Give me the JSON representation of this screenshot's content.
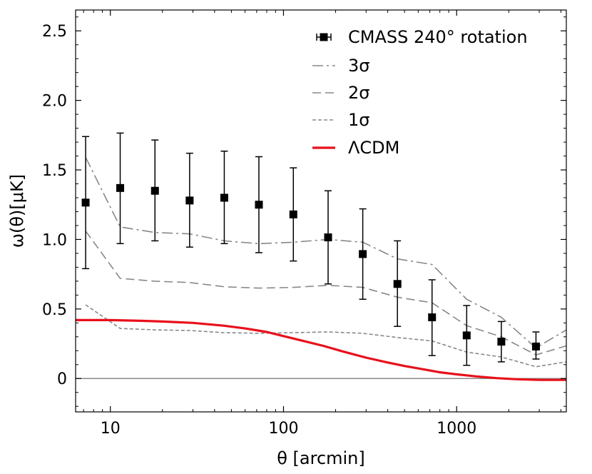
{
  "chart_data": {
    "type": "scatter",
    "xscale": "log",
    "xlim": [
      6.3,
      4300
    ],
    "ylim": [
      -0.24,
      2.65
    ],
    "xlabel": "θ [arcmin]",
    "ylabel": "ω(θ)[μK]",
    "xticks": [
      {
        "value": 10,
        "label": "10"
      },
      {
        "value": 100,
        "label": "100"
      },
      {
        "value": 1000,
        "label": "1000"
      }
    ],
    "yticks": [
      {
        "value": 0,
        "label": "0"
      },
      {
        "value": 0.5,
        "label": "0.5"
      },
      {
        "value": 1.0,
        "label": "1.0"
      },
      {
        "value": 1.5,
        "label": "1.5"
      },
      {
        "value": 2.0,
        "label": "2.0"
      },
      {
        "value": 2.5,
        "label": "2.5"
      }
    ],
    "legend_position": "top-right",
    "zero_line": true,
    "points": {
      "name": "CMASS 240° rotation",
      "color": "#000000",
      "x": [
        7.2,
        11.4,
        18.1,
        28.7,
        45.5,
        72.1,
        114,
        181,
        287,
        455,
        721,
        1143,
        1812,
        2872
      ],
      "y": [
        1.265,
        1.37,
        1.35,
        1.28,
        1.3,
        1.25,
        1.18,
        1.015,
        0.895,
        0.68,
        0.44,
        0.31,
        0.265,
        0.23
      ],
      "yerr_low": [
        0.79,
        0.97,
        0.99,
        0.945,
        0.97,
        0.905,
        0.845,
        0.68,
        0.57,
        0.375,
        0.165,
        0.095,
        0.12,
        0.14
      ],
      "yerr_high": [
        1.74,
        1.765,
        1.715,
        1.62,
        1.635,
        1.595,
        1.515,
        1.35,
        1.22,
        0.99,
        0.71,
        0.525,
        0.41,
        0.335
      ]
    },
    "series": [
      {
        "name": "3σ",
        "color": "#888888",
        "dash": "dashdot",
        "x": [
          7.2,
          11.4,
          18.1,
          28.7,
          45.5,
          72.1,
          114,
          181,
          287,
          455,
          721,
          1143,
          1812,
          2872,
          4300
        ],
        "y": [
          1.59,
          1.09,
          1.05,
          1.04,
          0.99,
          0.97,
          0.98,
          1.0,
          0.98,
          0.86,
          0.82,
          0.57,
          0.44,
          0.22,
          0.35
        ]
      },
      {
        "name": "2σ",
        "color": "#888888",
        "dash": "dashed",
        "x": [
          7.2,
          11.4,
          18.1,
          28.7,
          45.5,
          72.1,
          114,
          181,
          287,
          455,
          721,
          1143,
          1812,
          2872,
          4300
        ],
        "y": [
          1.06,
          0.72,
          0.7,
          0.69,
          0.66,
          0.65,
          0.655,
          0.67,
          0.655,
          0.585,
          0.545,
          0.38,
          0.3,
          0.17,
          0.235
        ]
      },
      {
        "name": "1σ",
        "color": "#888888",
        "dash": "dotted",
        "x": [
          7.2,
          11.4,
          18.1,
          28.7,
          45.5,
          72.1,
          114,
          181,
          287,
          455,
          721,
          1143,
          1812,
          2872,
          4300
        ],
        "y": [
          0.53,
          0.36,
          0.35,
          0.345,
          0.33,
          0.325,
          0.33,
          0.335,
          0.325,
          0.295,
          0.27,
          0.19,
          0.155,
          0.085,
          0.12
        ]
      },
      {
        "name": "ΛCDM",
        "color": "#e8101a",
        "dash": "solid",
        "x": [
          6.3,
          10,
          15,
          20,
          30,
          45,
          60,
          80,
          100,
          130,
          170,
          220,
          300,
          400,
          500,
          650,
          800,
          1000,
          1300,
          1700,
          2200,
          3000,
          4300
        ],
        "y": [
          0.42,
          0.42,
          0.415,
          0.41,
          0.4,
          0.38,
          0.36,
          0.335,
          0.305,
          0.27,
          0.235,
          0.195,
          0.15,
          0.115,
          0.09,
          0.065,
          0.045,
          0.03,
          0.015,
          0.003,
          -0.005,
          -0.01,
          -0.01
        ]
      }
    ]
  }
}
